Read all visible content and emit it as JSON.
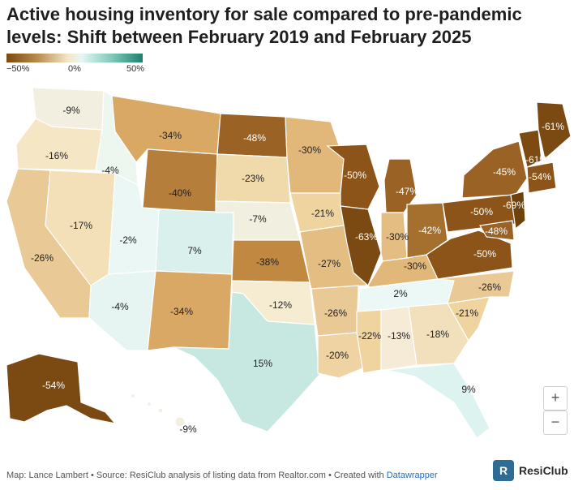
{
  "title": "Active housing inventory for sale compared to pre-pandemic levels: Shift between February 2019 and February 2025",
  "legend": {
    "min_label": "−50%",
    "mid_label": "0%",
    "max_label": "50%",
    "colors": [
      "#7a4a12",
      "#b58a4a",
      "#f5e6c6",
      "#e6f6f3",
      "#7cc8b8",
      "#1f7f6e"
    ]
  },
  "states": [
    {
      "name": "Washington",
      "label": "-9%"
    },
    {
      "name": "Oregon",
      "label": "-16%"
    },
    {
      "name": "California",
      "label": "-26%"
    },
    {
      "name": "Nevada",
      "label": "-17%"
    },
    {
      "name": "Idaho",
      "label": "-4%"
    },
    {
      "name": "Montana",
      "label": "-34%"
    },
    {
      "name": "Wyoming",
      "label": "-40%"
    },
    {
      "name": "Utah",
      "label": "-2%"
    },
    {
      "name": "Arizona",
      "label": "-4%"
    },
    {
      "name": "Colorado",
      "label": "7%"
    },
    {
      "name": "New Mexico",
      "label": "-34%"
    },
    {
      "name": "North Dakota",
      "label": "-48%"
    },
    {
      "name": "South Dakota",
      "label": "-23%"
    },
    {
      "name": "Nebraska",
      "label": "-7%"
    },
    {
      "name": "Kansas",
      "label": "-38%"
    },
    {
      "name": "Oklahoma",
      "label": "-12%"
    },
    {
      "name": "Texas",
      "label": "15%"
    },
    {
      "name": "Minnesota",
      "label": "-30%"
    },
    {
      "name": "Iowa",
      "label": "-21%"
    },
    {
      "name": "Missouri",
      "label": "-27%"
    },
    {
      "name": "Arkansas",
      "label": "-26%"
    },
    {
      "name": "Louisiana",
      "label": "-20%"
    },
    {
      "name": "Wisconsin",
      "label": "-50%"
    },
    {
      "name": "Illinois",
      "label": "-63%"
    },
    {
      "name": "Michigan",
      "label": "-47%"
    },
    {
      "name": "Indiana",
      "label": "-30%"
    },
    {
      "name": "Ohio",
      "label": "-42%"
    },
    {
      "name": "Kentucky",
      "label": "-30%"
    },
    {
      "name": "Tennessee",
      "label": "2%"
    },
    {
      "name": "Mississippi",
      "label": "-22%"
    },
    {
      "name": "Alabama",
      "label": "-13%"
    },
    {
      "name": "Georgia",
      "label": "-18%"
    },
    {
      "name": "Florida",
      "label": "9%"
    },
    {
      "name": "South Carolina",
      "label": "-21%"
    },
    {
      "name": "North Carolina",
      "label": "-26%"
    },
    {
      "name": "Virginia",
      "label": "-50%"
    },
    {
      "name": "West Virginia",
      "label": ""
    },
    {
      "name": "Pennsylvania",
      "label": "-50%"
    },
    {
      "name": "New York",
      "label": "-45%"
    },
    {
      "name": "Vermont",
      "label": "-61%"
    },
    {
      "name": "Maine",
      "label": "-61%"
    },
    {
      "name": "Massachusetts",
      "label": "-54%"
    },
    {
      "name": "New Jersey",
      "label": "-69%"
    },
    {
      "name": "Maryland",
      "label": "-48%"
    },
    {
      "name": "Alaska",
      "label": "-54%"
    },
    {
      "name": "Hawaii",
      "label": "-9%"
    }
  ],
  "zoom": {
    "in_label": "+",
    "out_label": "−"
  },
  "footer": {
    "text": "Map: Lance Lambert • Source: ResiClub analysis of listing data from Realtor.com • Created with ",
    "link": "Datawrapper"
  },
  "logo": {
    "mark": "R",
    "text": "ResiClub"
  }
}
